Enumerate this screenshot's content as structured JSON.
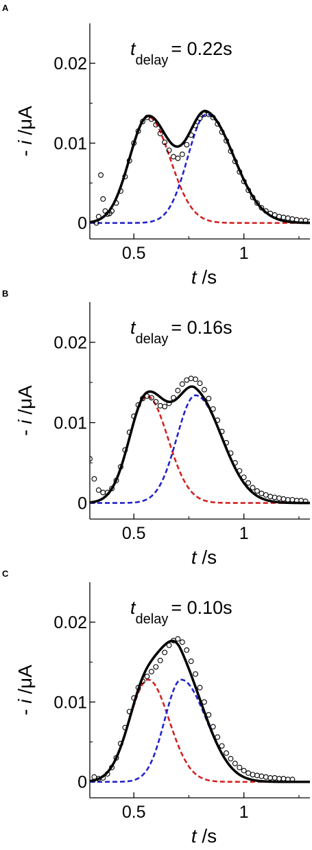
{
  "figure": {
    "panels": [
      {
        "letter": "A",
        "annotation": {
          "symbol": "t",
          "subscript": "delay",
          "text": "= 0.22s"
        },
        "chart_data": {
          "type": "scatter",
          "title": "",
          "xlabel": {
            "symbol": "t",
            "unit": " /s"
          },
          "ylabel": {
            "symbol": "i",
            "prefix": "- ",
            "unit": " /μA"
          },
          "xlim": [
            0.3,
            1.3
          ],
          "ylim": [
            -0.002,
            0.025
          ],
          "xticks": [
            0.5,
            1
          ],
          "xtick_labels": [
            "0.5",
            "1"
          ],
          "yticks": [
            0,
            0.01,
            0.02
          ],
          "ytick_labels": [
            "0",
            "0.01",
            "0.02"
          ],
          "grid": false,
          "legend": "none",
          "peaks": [
            {
              "center": 0.565,
              "amplitude": 0.0133,
              "sigma_left": 0.085,
              "sigma_right": 0.1,
              "color": "#d42020",
              "style": "dashed"
            },
            {
              "center": 0.83,
              "amplitude": 0.0136,
              "sigma_left": 0.085,
              "sigma_right": 0.125,
              "color": "#2222cc",
              "style": "dashed"
            }
          ],
          "fit_color": "#000000",
          "measured": {
            "x": [
              0.33,
              0.34,
              0.35,
              0.36,
              0.37,
              0.38,
              0.39,
              0.4,
              0.42,
              0.44,
              0.46,
              0.48,
              0.5,
              0.52,
              0.54,
              0.56,
              0.58,
              0.6,
              0.62,
              0.64,
              0.66,
              0.68,
              0.7,
              0.72,
              0.74,
              0.76,
              0.78,
              0.8,
              0.82,
              0.84,
              0.86,
              0.88,
              0.9,
              0.92,
              0.94,
              0.96,
              0.98,
              1.0,
              1.02,
              1.04,
              1.06,
              1.08,
              1.1,
              1.12,
              1.14,
              1.16,
              1.18,
              1.2,
              1.22,
              1.24,
              1.26,
              1.28,
              1.3
            ],
            "y": [
              0.0,
              0.0008,
              0.006,
              0.003,
              0.0015,
              0.0011,
              0.0012,
              0.0015,
              0.0025,
              0.004,
              0.0058,
              0.0078,
              0.01,
              0.0115,
              0.0127,
              0.0132,
              0.013,
              0.0123,
              0.0112,
              0.0101,
              0.0091,
              0.0083,
              0.0081,
              0.0086,
              0.0098,
              0.011,
              0.0122,
              0.0131,
              0.0136,
              0.0136,
              0.0132,
              0.0124,
              0.0114,
              0.0103,
              0.009,
              0.0077,
              0.0064,
              0.0052,
              0.0041,
              0.0032,
              0.0025,
              0.0019,
              0.0015,
              0.0012,
              0.001,
              0.0008,
              0.0007,
              0.0006,
              0.0005,
              0.0004,
              0.0003,
              0.0003,
              0.0002
            ]
          }
        }
      },
      {
        "letter": "B",
        "annotation": {
          "symbol": "t",
          "subscript": "delay",
          "text": "= 0.16s"
        },
        "chart_data": {
          "type": "scatter",
          "title": "",
          "xlabel": {
            "symbol": "t",
            "unit": " /s"
          },
          "ylabel": {
            "symbol": "i",
            "prefix": "- ",
            "unit": " /μA"
          },
          "xlim": [
            0.3,
            1.3
          ],
          "ylim": [
            -0.002,
            0.025
          ],
          "xticks": [
            0.5,
            1
          ],
          "xtick_labels": [
            "0.5",
            "1"
          ],
          "yticks": [
            0,
            0.01,
            0.02
          ],
          "ytick_labels": [
            "0",
            "0.01",
            "0.02"
          ],
          "grid": false,
          "legend": "none",
          "peaks": [
            {
              "center": 0.56,
              "amplitude": 0.0133,
              "sigma_left": 0.08,
              "sigma_right": 0.095,
              "color": "#d42020",
              "style": "dashed"
            },
            {
              "center": 0.78,
              "amplitude": 0.0134,
              "sigma_left": 0.085,
              "sigma_right": 0.12,
              "color": "#2222cc",
              "style": "dashed"
            }
          ],
          "fit_color": "#000000",
          "measured": {
            "x": [
              0.3,
              0.32,
              0.34,
              0.36,
              0.38,
              0.4,
              0.42,
              0.44,
              0.46,
              0.48,
              0.5,
              0.52,
              0.54,
              0.56,
              0.58,
              0.6,
              0.62,
              0.64,
              0.66,
              0.68,
              0.7,
              0.72,
              0.74,
              0.76,
              0.78,
              0.8,
              0.82,
              0.84,
              0.86,
              0.88,
              0.9,
              0.92,
              0.94,
              0.96,
              0.98,
              1.0,
              1.02,
              1.04,
              1.06,
              1.08,
              1.1,
              1.12,
              1.14,
              1.16,
              1.18,
              1.2,
              1.22,
              1.24,
              1.26,
              1.28
            ],
            "y": [
              0.0055,
              0.003,
              0.0016,
              0.0013,
              0.0013,
              0.0018,
              0.0028,
              0.0045,
              0.0066,
              0.0088,
              0.0108,
              0.0122,
              0.013,
              0.0133,
              0.0131,
              0.0126,
              0.0121,
              0.012,
              0.0124,
              0.0131,
              0.014,
              0.0148,
              0.0153,
              0.0155,
              0.0154,
              0.0149,
              0.0141,
              0.013,
              0.0117,
              0.0103,
              0.0089,
              0.0075,
              0.0062,
              0.005,
              0.004,
              0.0032,
              0.0025,
              0.0019,
              0.0015,
              0.0012,
              0.001,
              0.0008,
              0.0007,
              0.0006,
              0.0005,
              0.0004,
              0.0004,
              0.0003,
              0.0003,
              0.0002
            ]
          }
        }
      },
      {
        "letter": "C",
        "annotation": {
          "symbol": "t",
          "subscript": "delay",
          "text": "= 0.10s"
        },
        "chart_data": {
          "type": "scatter",
          "title": "",
          "xlabel": {
            "symbol": "t",
            "unit": " /s"
          },
          "ylabel": {
            "symbol": "i",
            "prefix": "- ",
            "unit": " /μA"
          },
          "xlim": [
            0.3,
            1.3
          ],
          "ylim": [
            -0.002,
            0.025
          ],
          "xticks": [
            0.5,
            1
          ],
          "xtick_labels": [
            "0.5",
            "1"
          ],
          "yticks": [
            0,
            0.01,
            0.02
          ],
          "ytick_labels": [
            "0",
            "0.01",
            "0.02"
          ],
          "grid": false,
          "legend": "none",
          "peaks": [
            {
              "center": 0.565,
              "amplitude": 0.0128,
              "sigma_left": 0.085,
              "sigma_right": 0.095,
              "color": "#d42020",
              "style": "dashed"
            },
            {
              "center": 0.715,
              "amplitude": 0.0128,
              "sigma_left": 0.075,
              "sigma_right": 0.115,
              "color": "#2222cc",
              "style": "dashed"
            }
          ],
          "fit_color": "#000000",
          "measured": {
            "x": [
              0.32,
              0.34,
              0.36,
              0.38,
              0.4,
              0.42,
              0.44,
              0.46,
              0.48,
              0.5,
              0.52,
              0.54,
              0.56,
              0.58,
              0.6,
              0.62,
              0.64,
              0.66,
              0.68,
              0.7,
              0.72,
              0.74,
              0.76,
              0.78,
              0.8,
              0.82,
              0.84,
              0.86,
              0.88,
              0.9,
              0.92,
              0.94,
              0.96,
              0.98,
              1.0,
              1.02,
              1.04,
              1.06,
              1.08,
              1.1,
              1.12,
              1.14,
              1.16,
              1.18,
              1.2,
              1.22
            ],
            "y": [
              0.0006,
              0.0004,
              0.0005,
              0.001,
              0.0018,
              0.003,
              0.0048,
              0.0068,
              0.0088,
              0.0105,
              0.0118,
              0.0126,
              0.0132,
              0.0138,
              0.0144,
              0.0152,
              0.0162,
              0.0171,
              0.0177,
              0.0179,
              0.0175,
              0.0165,
              0.0151,
              0.0135,
              0.0118,
              0.01,
              0.0084,
              0.0069,
              0.0056,
              0.0045,
              0.0036,
              0.0029,
              0.0023,
              0.0018,
              0.0014,
              0.0011,
              0.0009,
              0.0008,
              0.0007,
              0.0006,
              0.0005,
              0.0005,
              0.0004,
              0.0004,
              0.0003,
              0.0003
            ]
          }
        }
      }
    ]
  },
  "chart_data": [
    {
      "panel": "A",
      "type": "scatter",
      "xlim": [
        0.3,
        1.3
      ],
      "ylim": [
        -0.002,
        0.025
      ],
      "xticks": [
        0.5,
        1
      ],
      "yticks": [
        0,
        0.01,
        0.02
      ],
      "series_names": [],
      "peak_centers": [
        0.565,
        0.83
      ]
    },
    {
      "panel": "B",
      "type": "scatter",
      "xlim": [
        0.3,
        1.3
      ],
      "ylim": [
        -0.002,
        0.025
      ],
      "xticks": [
        0.5,
        1
      ],
      "yticks": [
        0,
        0.01,
        0.02
      ],
      "series_names": [],
      "peak_centers": [
        0.56,
        0.78
      ]
    },
    {
      "panel": "C",
      "type": "scatter",
      "xlim": [
        0.3,
        1.3
      ],
      "ylim": [
        -0.002,
        0.025
      ],
      "xticks": [
        0.5,
        1
      ],
      "yticks": [
        0,
        0.01,
        0.02
      ],
      "series_names": [],
      "peak_centers": [
        0.565,
        0.715
      ]
    }
  ]
}
